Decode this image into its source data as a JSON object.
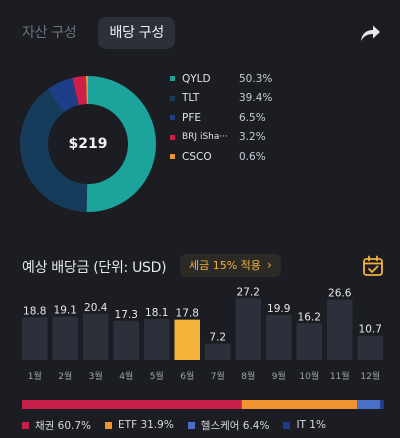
{
  "tabs": [
    {
      "label": "자산 구성",
      "active": false
    },
    {
      "label": "배당 구성",
      "active": true
    }
  ],
  "icons": {
    "share": "share-arrow-icon",
    "calendar": "calendar-check-icon",
    "chevron": "chevron-right-icon"
  },
  "colors": {
    "background": "#1b1d22",
    "accent": "#f5b33c",
    "bar": "#2c303b",
    "bar_highlight": "#f5b33c"
  },
  "composition": {
    "total": "$219",
    "items": [
      {
        "name": "QYLD",
        "pct": "50.3%",
        "value": 50.3,
        "color": "#1ba39c"
      },
      {
        "name": "TLT",
        "pct": "39.4%",
        "value": 39.4,
        "color": "#163c5c"
      },
      {
        "name": "PFE",
        "pct": "6.5%",
        "value": 6.5,
        "color": "#1e3e88"
      },
      {
        "name": "BRJ iSha···",
        "pct": "3.2%",
        "value": 3.2,
        "color": "#cd1f4a"
      },
      {
        "name": "CSCO",
        "pct": "0.6%",
        "value": 0.6,
        "color": "#f09432"
      }
    ]
  },
  "expected": {
    "title": "예상 배당금 (단위: USD)",
    "tax_chip": "세금 15% 적용",
    "chevron": "›"
  },
  "chart_data": {
    "type": "bar",
    "categories": [
      "1월",
      "2월",
      "3월",
      "4월",
      "5월",
      "6월",
      "7월",
      "8월",
      "9월",
      "10월",
      "11월",
      "12월"
    ],
    "values": [
      18.8,
      19.1,
      20.4,
      17.3,
      18.1,
      17.8,
      7.2,
      27.2,
      19.9,
      16.2,
      26.6,
      10.7
    ],
    "labels": [
      "18.8",
      "19.1",
      "20.4",
      "17.3",
      "18.1",
      "17.8",
      "7.2",
      "27.2",
      "19.9",
      "16.2",
      "26.6",
      "10.7"
    ],
    "highlight_index": 5,
    "ylim": [
      0,
      30
    ]
  },
  "sector": {
    "items": [
      {
        "label": "채권 60.7%",
        "value": 60.7,
        "color": "#c81e4a"
      },
      {
        "label": "ETF 31.9%",
        "value": 31.9,
        "color": "#f09432"
      },
      {
        "label": "헬스케어 6.4%",
        "value": 6.4,
        "color": "#4a6fc8"
      },
      {
        "label": "IT 1%",
        "value": 1.0,
        "color": "#1d3b8a"
      }
    ]
  }
}
